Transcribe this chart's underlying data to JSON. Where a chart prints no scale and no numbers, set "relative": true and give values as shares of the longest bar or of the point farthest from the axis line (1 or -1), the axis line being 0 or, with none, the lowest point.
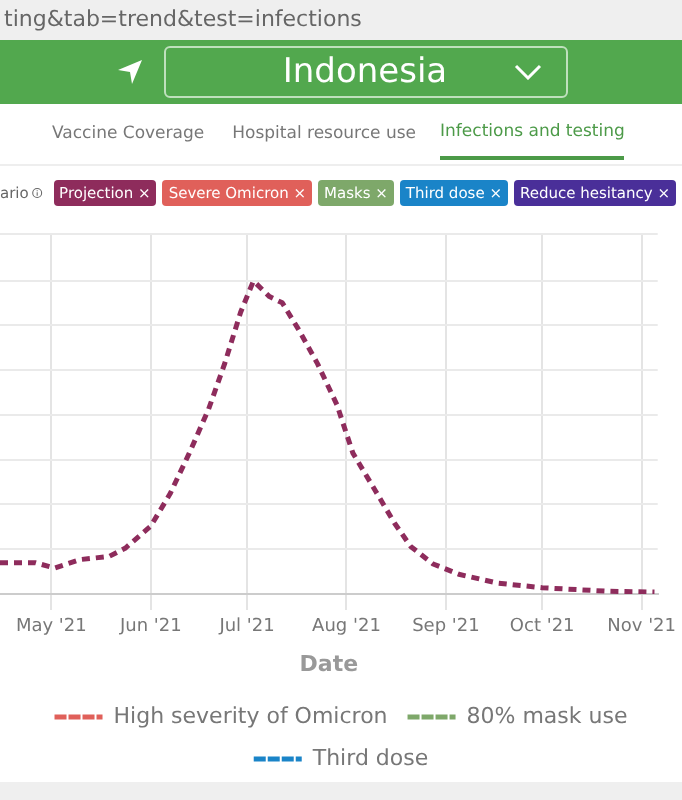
{
  "chart_data": {
    "type": "line",
    "title": "Indonesia",
    "xlabel": "Date",
    "relative": true,
    "annotations": [
      "ting&tab=trend&test=infections",
      "Vaccine Coverage",
      "Hospital resource use",
      "Infections and testing",
      "ario",
      "Projection ×",
      "Severe Omicron ×",
      "Masks ×",
      "Third dose ×",
      "Reduce hesitancy ×"
    ],
    "x": [
      "2021-04-15",
      "2021-04-26",
      "2021-05-02",
      "2021-05-10",
      "2021-05-19",
      "2021-05-24",
      "2021-06-01",
      "2021-06-07",
      "2021-06-13",
      "2021-06-19",
      "2021-06-24",
      "2021-06-29",
      "2021-07-03",
      "2021-07-08",
      "2021-07-12",
      "2021-07-17",
      "2021-07-23",
      "2021-07-29",
      "2021-08-03",
      "2021-08-10",
      "2021-08-16",
      "2021-08-21",
      "2021-08-28",
      "2021-09-05",
      "2021-09-17",
      "2021-10-01",
      "2021-10-21",
      "2021-11-05"
    ],
    "xlim": [
      "2021-04-15",
      "2021-11-06"
    ],
    "xticks": [
      {
        "value": "2021-05-01",
        "label": "May '21"
      },
      {
        "value": "2021-06-01",
        "label": "Jun '21"
      },
      {
        "value": "2021-07-01",
        "label": "Jul '21"
      },
      {
        "value": "2021-08-01",
        "label": "Aug '21"
      },
      {
        "value": "2021-09-01",
        "label": "Sep '21"
      },
      {
        "value": "2021-10-01",
        "label": "Oct '21"
      },
      {
        "value": "2021-11-01",
        "label": "Nov '21"
      }
    ],
    "series": [
      {
        "color": "#8e2c5c",
        "values": [
          0.1,
          0.1,
          0.083,
          0.11,
          0.12,
          0.146,
          0.217,
          0.32,
          0.45,
          0.59,
          0.735,
          0.9,
          1.0,
          0.95,
          0.93,
          0.846,
          0.735,
          0.605,
          0.45,
          0.33,
          0.226,
          0.152,
          0.096,
          0.063,
          0.035,
          0.02,
          0.009,
          0.006
        ]
      },
      {
        "name": "High severity of Omicron",
        "color": "#e0605a",
        "values": [
          null,
          null,
          null,
          null,
          null,
          null,
          null,
          null,
          null,
          null,
          null,
          null,
          null,
          null,
          null,
          null,
          null,
          null,
          null,
          null,
          null,
          null,
          null,
          null,
          null,
          null,
          null,
          null
        ]
      },
      {
        "name": "80% mask use",
        "color": "#7ea86a",
        "values": [
          null,
          null,
          null,
          null,
          null,
          null,
          null,
          null,
          null,
          null,
          null,
          null,
          null,
          null,
          null,
          null,
          null,
          null,
          null,
          null,
          null,
          null,
          null,
          null,
          null,
          null,
          null,
          null
        ]
      },
      {
        "name": "Third dose",
        "color": "#1a84c8",
        "values": [
          null,
          null,
          null,
          null,
          null,
          null,
          null,
          null,
          null,
          null,
          null,
          null,
          null,
          null,
          null,
          null,
          null,
          null,
          null,
          null,
          null,
          null,
          null,
          null,
          null,
          null,
          null,
          null
        ]
      }
    ],
    "grid": true,
    "legend": "bottom",
    "line_style": "dashed",
    "marker": "none"
  }
}
